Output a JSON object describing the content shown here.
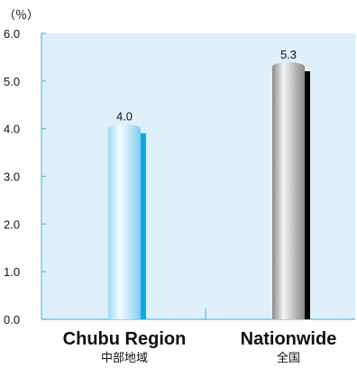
{
  "chart_data": {
    "type": "bar",
    "unit_label": "（％）",
    "categories": [
      {
        "label": "Chubu Region",
        "label_ja": "中部地域",
        "value": 4.0,
        "value_label": "4.0"
      },
      {
        "label": "Nationwide",
        "label_ja": "全国",
        "value": 5.3,
        "value_label": "5.3"
      }
    ],
    "values": [
      4.0,
      5.3
    ],
    "ylim": [
      0,
      6
    ],
    "yticks": [
      "0.0",
      "1.0",
      "2.0",
      "3.0",
      "4.0",
      "5.0",
      "6.0"
    ],
    "grid": false,
    "colors": {
      "plot_background": "#dff0fa",
      "axis": "#55bdea",
      "bar_chubu_light": "#e8f6fd",
      "bar_chubu_mid": "#8fd3f3",
      "bar_chubu_shadow": "#13a6e6",
      "bar_nation_light": "#ececec",
      "bar_nation_mid": "#9a9a9a",
      "bar_nation_shadow": "#000000"
    }
  }
}
